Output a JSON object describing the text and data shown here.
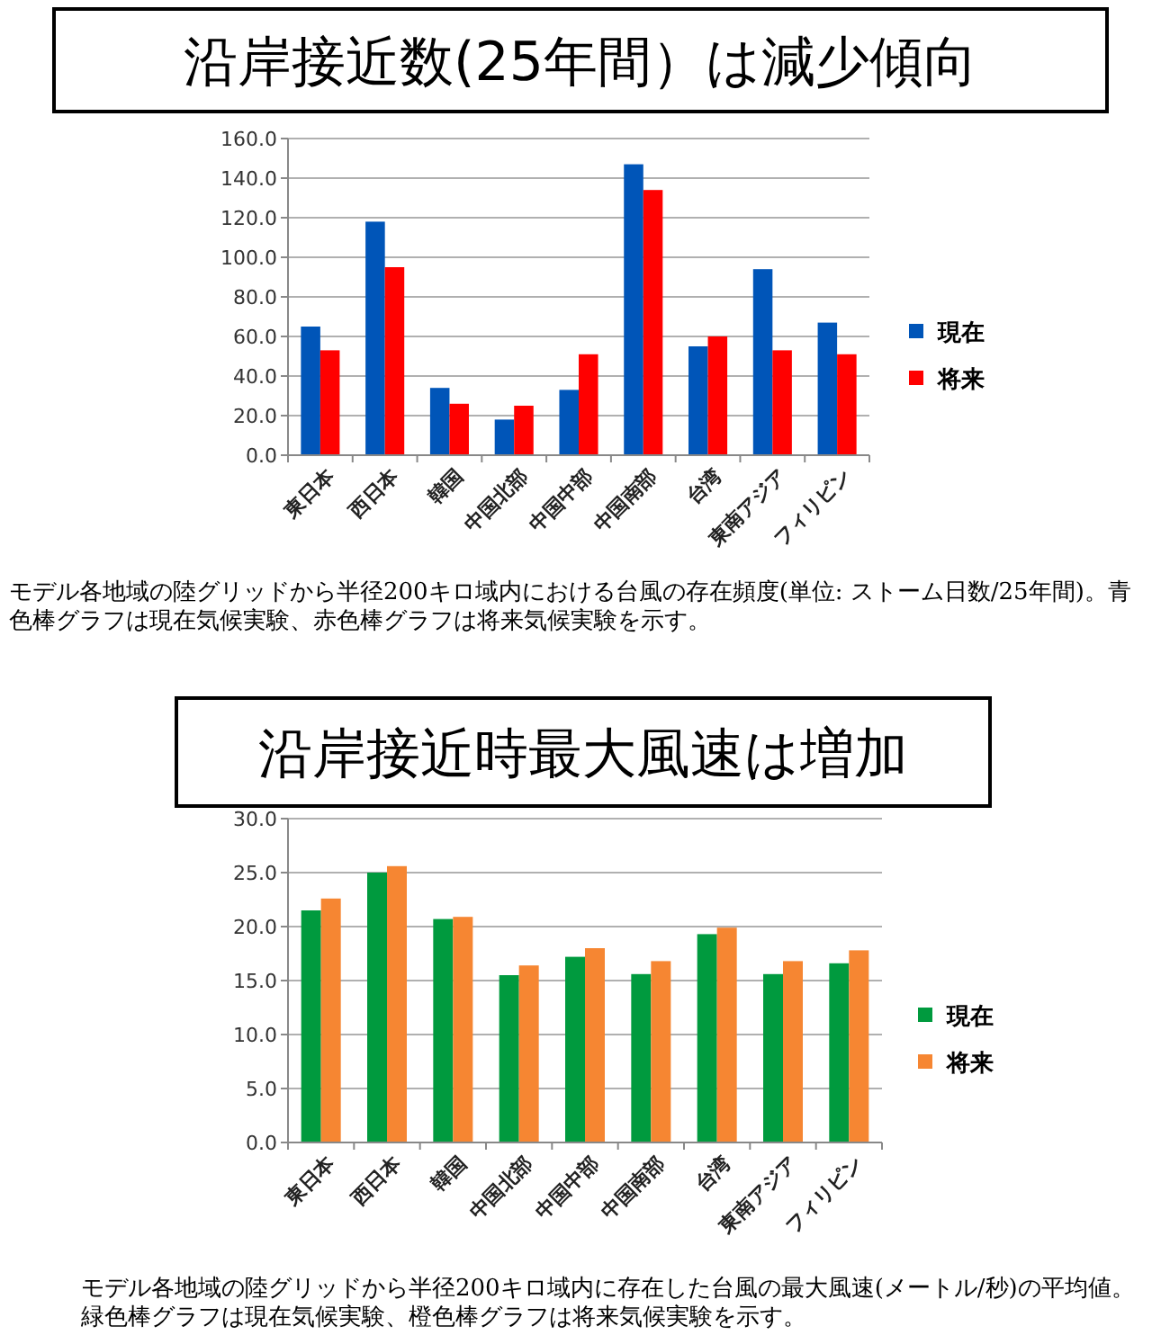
{
  "chart_data": [
    {
      "type": "bar",
      "title": "沿岸接近数(25年間）は減少傾向",
      "categories": [
        "東日本",
        "西日本",
        "韓国",
        "中国北部",
        "中国中部",
        "中国南部",
        "台湾",
        "東南アジア",
        "フィリピン"
      ],
      "series": [
        {
          "name": "現在",
          "color": "#0055b8",
          "values": [
            65,
            118,
            34,
            18,
            33,
            147,
            55,
            94,
            67
          ]
        },
        {
          "name": "将来",
          "color": "#ff0000",
          "values": [
            53,
            95,
            26,
            25,
            51,
            134,
            60,
            53,
            51
          ]
        }
      ],
      "ylim": [
        0,
        160
      ],
      "yticks": [
        {
          "value": 0,
          "label": "0.0"
        },
        {
          "value": 20,
          "label": "20.0"
        },
        {
          "value": 40,
          "label": "40.0"
        },
        {
          "value": 60,
          "label": "60.0"
        },
        {
          "value": 80,
          "label": "80.0"
        },
        {
          "value": 100,
          "label": "100.0"
        },
        {
          "value": 120,
          "label": "120.0"
        },
        {
          "value": 140,
          "label": "140.0"
        },
        {
          "value": 160,
          "label": "160.0"
        }
      ],
      "grid": "y",
      "legend": "right",
      "annotations": [
        "モデル各地域の陸グリッドから半径200キロ域内における台風の存在頻度(単位: ストーム日数/25年間)。青色棒グラフは現在気候実験、赤色棒グラフは将来気候実験を示す。"
      ]
    },
    {
      "type": "bar",
      "title": "沿岸接近時最大風速は増加",
      "categories": [
        "東日本",
        "西日本",
        "韓国",
        "中国北部",
        "中国中部",
        "中国南部",
        "台湾",
        "東南アジア",
        "フィリピン"
      ],
      "series": [
        {
          "name": "現在",
          "color": "#009a3e",
          "values": [
            21.5,
            25,
            20.7,
            15.5,
            17.2,
            15.6,
            19.3,
            15.6,
            16.6
          ]
        },
        {
          "name": "将来",
          "color": "#f68632",
          "values": [
            22.6,
            25.6,
            20.9,
            16.4,
            18,
            16.8,
            19.9,
            16.8,
            17.8
          ]
        }
      ],
      "ylim": [
        0,
        30
      ],
      "yticks": [
        {
          "value": 0,
          "label": "0.0"
        },
        {
          "value": 5,
          "label": "5.0"
        },
        {
          "value": 10,
          "label": "10.0"
        },
        {
          "value": 15,
          "label": "15.0"
        },
        {
          "value": 20,
          "label": "20.0"
        },
        {
          "value": 25,
          "label": "25.0"
        },
        {
          "value": 30,
          "label": "30.0"
        }
      ],
      "grid": "y",
      "legend": "right",
      "annotations": [
        "モデル各地域の陸グリッドから半径200キロ域内に存在した台風の最大風速(メートル/秒)の平均値。緑色棒グラフは現在気候実験、橙色棒グラフは将来気候実験を示す。"
      ]
    }
  ]
}
